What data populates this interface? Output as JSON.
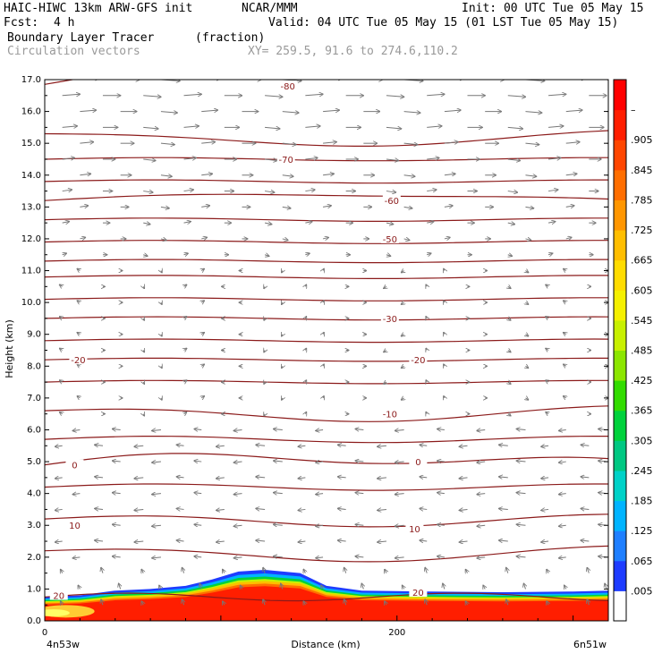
{
  "header": {
    "model": "HAIC-HIWC 13km ARW-GFS init",
    "org": "NCAR/MMM",
    "init": "Init: 00 UTC Tue 05 May 15",
    "fcst_label": "Fcst:",
    "fcst_value": "4 h",
    "valid": "Valid: 04 UTC Tue 05 May 15 (01 LST Tue 05 May 15)",
    "field": "Boundary Layer Tracer",
    "units": "(fraction)",
    "vectors": "Circulation vectors",
    "xy": "XY= 259.5, 91.6 to 274.6,110.2"
  },
  "colors": {
    "contour": "#8b1a1a",
    "vector": "#777777",
    "colorbar": [
      "#ffffff",
      "#1e3cff",
      "#1f7fff",
      "#00b4ff",
      "#00d2c8",
      "#00c882",
      "#00d23c",
      "#32dc00",
      "#8ce600",
      "#c8f000",
      "#f5f000",
      "#ffdc00",
      "#ffbe00",
      "#ff9600",
      "#ff6e00",
      "#ff4600",
      "#ff1e00",
      "#ff0000"
    ]
  },
  "chart_data": {
    "type": "contour",
    "title": "Boundary Layer Tracer",
    "xlabel": "Distance (km)",
    "ylabel": "Height (km)",
    "xlim": [
      0,
      320
    ],
    "ylim": [
      0,
      17
    ],
    "x_ticks": [
      {
        "value": 0,
        "label": "0"
      },
      {
        "value": 200,
        "label": "200"
      }
    ],
    "x_end_labels": {
      "left": "4n53w",
      "right": "6n51w"
    },
    "y_ticks": [
      "0.0",
      "1.0",
      "2.0",
      "3.0",
      "4.0",
      "5.0",
      "6.0",
      "7.0",
      "8.0",
      "9.0",
      "10.0",
      "11.0",
      "12.0",
      "13.0",
      "14.0",
      "15.0",
      "16.0",
      "17.0"
    ],
    "colorbar_labels": [
      ".005",
      ".065",
      ".125",
      ".185",
      ".245",
      ".305",
      ".365",
      ".425",
      ".485",
      ".545",
      ".605",
      ".665",
      ".725",
      ".785",
      ".845",
      ".905",
      "–"
    ],
    "contour_labels": [
      {
        "text": "-80",
        "x": 138,
        "y": 16.8
      },
      {
        "text": "-70",
        "x": 137,
        "y": 14.5
      },
      {
        "text": "-60",
        "x": 197,
        "y": 13.2
      },
      {
        "text": "-50",
        "x": 196,
        "y": 12.0
      },
      {
        "text": "-30",
        "x": 196,
        "y": 9.5
      },
      {
        "text": "-20",
        "x": 19,
        "y": 8.2
      },
      {
        "text": "-20",
        "x": 212,
        "y": 8.2
      },
      {
        "text": "-10",
        "x": 196,
        "y": 6.5
      },
      {
        "text": "0",
        "x": 17,
        "y": 4.9
      },
      {
        "text": "0",
        "x": 212,
        "y": 5.0
      },
      {
        "text": "10",
        "x": 17,
        "y": 3.0
      },
      {
        "text": "10",
        "x": 210,
        "y": 2.9
      },
      {
        "text": "20",
        "x": 8,
        "y": 0.8
      },
      {
        "text": "20",
        "x": 212,
        "y": 0.9
      }
    ],
    "tracer_top_km": [
      {
        "x": 0,
        "top": 0.75
      },
      {
        "x": 20,
        "top": 0.8
      },
      {
        "x": 40,
        "top": 0.95
      },
      {
        "x": 60,
        "top": 1.0
      },
      {
        "x": 80,
        "top": 1.1
      },
      {
        "x": 95,
        "top": 1.3
      },
      {
        "x": 110,
        "top": 1.55
      },
      {
        "x": 125,
        "top": 1.6
      },
      {
        "x": 145,
        "top": 1.5
      },
      {
        "x": 160,
        "top": 1.1
      },
      {
        "x": 180,
        "top": 0.95
      },
      {
        "x": 220,
        "top": 0.92
      },
      {
        "x": 260,
        "top": 0.9
      },
      {
        "x": 300,
        "top": 0.92
      },
      {
        "x": 320,
        "top": 0.95
      }
    ]
  }
}
